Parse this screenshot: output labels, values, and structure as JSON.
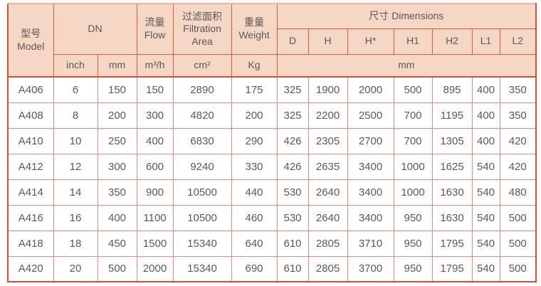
{
  "table": {
    "header": {
      "model": "型号\nModel",
      "dn": "DN",
      "flow": "流量\nFlow",
      "filtration_area": "过滤面积\nFiltration\nArea",
      "weight": "重量\nWeight",
      "dimensions": "尺寸 Dimensions",
      "dim_cols": [
        "D",
        "H",
        "H*",
        "H1",
        "H2",
        "L1",
        "L2"
      ],
      "units": {
        "dn_inch": "inch",
        "dn_mm": "mm",
        "flow": "m³/h",
        "area": "cm²",
        "weight": "Kg",
        "dims": "mm"
      }
    },
    "rows": [
      {
        "cells": [
          "A406",
          "6",
          "150",
          "150",
          "2890",
          "175",
          "325",
          "1900",
          "2000",
          "500",
          "895",
          "400",
          "350"
        ]
      },
      {
        "cells": [
          "A408",
          "8",
          "200",
          "300",
          "4820",
          "200",
          "325",
          "2200",
          "2500",
          "700",
          "1195",
          "400",
          "350"
        ]
      },
      {
        "cells": [
          "A410",
          "10",
          "250",
          "400",
          "6830",
          "290",
          "426",
          "2305",
          "2700",
          "700",
          "1305",
          "400",
          "420"
        ]
      },
      {
        "cells": [
          "A412",
          "12",
          "300",
          "600",
          "9240",
          "330",
          "426",
          "2635",
          "3400",
          "1000",
          "1625",
          "540",
          "420"
        ]
      },
      {
        "cells": [
          "A414",
          "14",
          "350",
          "900",
          "10500",
          "440",
          "530",
          "2640",
          "3400",
          "1000",
          "1630",
          "540",
          "480"
        ]
      },
      {
        "cells": [
          "A416",
          "16",
          "400",
          "1100",
          "10500",
          "460",
          "530",
          "2640",
          "3400",
          "950",
          "1630",
          "540",
          "500"
        ]
      },
      {
        "cells": [
          "A418",
          "18",
          "450",
          "1500",
          "15340",
          "640",
          "610",
          "2805",
          "3710",
          "950",
          "1795",
          "540",
          "500"
        ]
      },
      {
        "cells": [
          "A420",
          "20",
          "500",
          "2000",
          "15340",
          "690",
          "610",
          "2805",
          "3700",
          "950",
          "1795",
          "540",
          "500"
        ]
      }
    ],
    "colors": {
      "header_bg": "#f6d6c4",
      "border_strong": "#dc5640",
      "border_light": "#e98a7b",
      "border_top_edge": "#efb2a8",
      "text": "#58595b"
    }
  }
}
